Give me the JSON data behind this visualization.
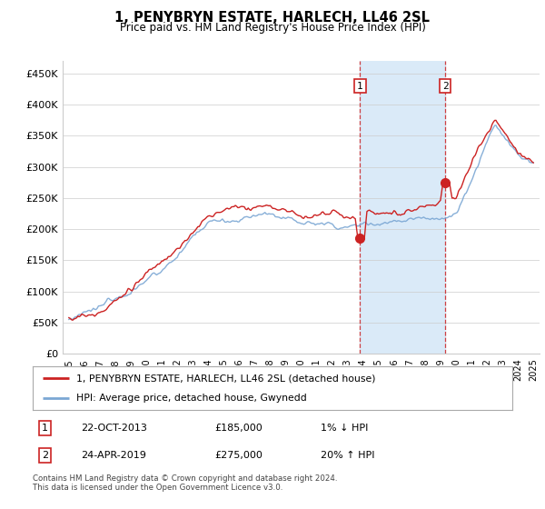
{
  "title": "1, PENYBRYN ESTATE, HARLECH, LL46 2SL",
  "subtitle": "Price paid vs. HM Land Registry's House Price Index (HPI)",
  "ylabel_ticks": [
    "£0",
    "£50K",
    "£100K",
    "£150K",
    "£200K",
    "£250K",
    "£300K",
    "£350K",
    "£400K",
    "£450K"
  ],
  "ytick_values": [
    0,
    50000,
    100000,
    150000,
    200000,
    250000,
    300000,
    350000,
    400000,
    450000
  ],
  "ylim": [
    0,
    470000
  ],
  "xlim_start": 1994.6,
  "xlim_end": 2025.4,
  "hpi_color": "#7ba7d4",
  "price_color": "#cc2222",
  "sale1_date": 2013.81,
  "sale1_price": 185000,
  "sale2_date": 2019.31,
  "sale2_price": 275000,
  "vline_color": "#cc2222",
  "shaded_color": "#daeaf8",
  "legend_line1": "1, PENYBRYN ESTATE, HARLECH, LL46 2SL (detached house)",
  "legend_line2": "HPI: Average price, detached house, Gwynedd",
  "table_row1": [
    "1",
    "22-OCT-2013",
    "£185,000",
    "1% ↓ HPI"
  ],
  "table_row2": [
    "2",
    "24-APR-2019",
    "£275,000",
    "20% ↑ HPI"
  ],
  "footnote": "Contains HM Land Registry data © Crown copyright and database right 2024.\nThis data is licensed under the Open Government Licence v3.0.",
  "background_color": "#ffffff",
  "grid_color": "#cccccc"
}
